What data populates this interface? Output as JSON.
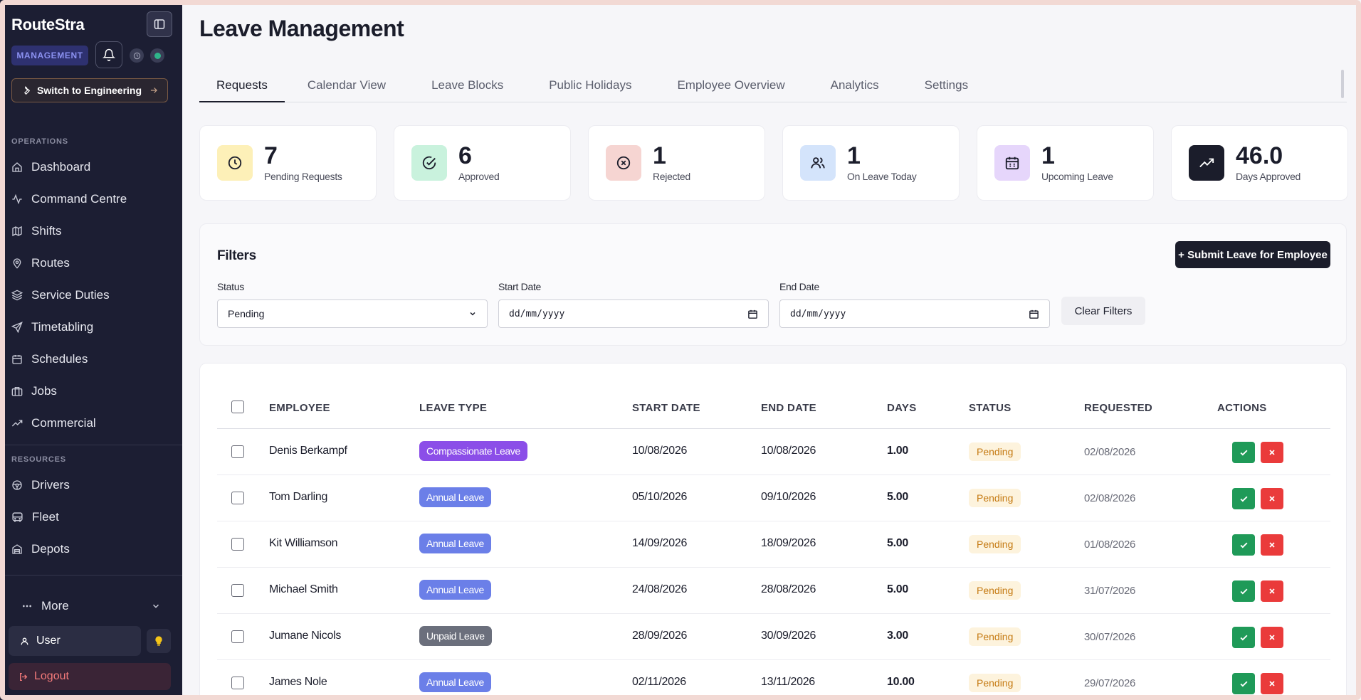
{
  "sidebar": {
    "brand": "RouteStra",
    "mode_badge": "MANAGEMENT",
    "switch_label": "Switch to Engineering",
    "sections": {
      "operations": "OPERATIONS",
      "resources": "RESOURCES"
    },
    "operations_items": [
      {
        "label": "Dashboard",
        "icon": "home-icon"
      },
      {
        "label": "Command Centre",
        "icon": "activity-icon"
      },
      {
        "label": "Shifts",
        "icon": "map-icon"
      },
      {
        "label": "Routes",
        "icon": "pin-icon"
      },
      {
        "label": "Service Duties",
        "icon": "layers-icon"
      },
      {
        "label": "Timetabling",
        "icon": "send-icon"
      },
      {
        "label": "Schedules",
        "icon": "calendar-icon"
      },
      {
        "label": "Jobs",
        "icon": "briefcase-icon"
      },
      {
        "label": "Commercial",
        "icon": "trend-icon"
      }
    ],
    "resources_items": [
      {
        "label": "Drivers",
        "icon": "steering-icon"
      },
      {
        "label": "Fleet",
        "icon": "bus-icon"
      },
      {
        "label": "Depots",
        "icon": "building-icon"
      }
    ],
    "more_label": "More",
    "user_label": "User",
    "logout_label": "Logout"
  },
  "page": {
    "title": "Leave Management",
    "tabs": [
      "Requests",
      "Calendar View",
      "Leave Blocks",
      "Public Holidays",
      "Employee Overview",
      "Analytics",
      "Settings"
    ],
    "active_tab": "Requests"
  },
  "stats": [
    {
      "value": "7",
      "label": "Pending Requests",
      "icon": "clock-icon",
      "bg": "#fdf0b8",
      "fg": "#1b1d2b"
    },
    {
      "value": "6",
      "label": "Approved",
      "icon": "check-circle-icon",
      "bg": "#c9f2dd",
      "fg": "#1b1d2b"
    },
    {
      "value": "1",
      "label": "Rejected",
      "icon": "x-circle-icon",
      "bg": "#f6d5d2",
      "fg": "#1b1d2b"
    },
    {
      "value": "1",
      "label": "On Leave Today",
      "icon": "users-icon",
      "bg": "#d4e4fb",
      "fg": "#1b1d2b"
    },
    {
      "value": "1",
      "label": "Upcoming Leave",
      "icon": "calendar-icon",
      "bg": "#e6d6fb",
      "fg": "#1b1d2b"
    },
    {
      "value": "46.0",
      "label": "Days Approved",
      "icon": "trend-up-icon",
      "bg": "#1b1d2b",
      "fg": "#ffffff"
    }
  ],
  "filters": {
    "title": "Filters",
    "submit_label": "+ Submit Leave for Employee",
    "status_label": "Status",
    "status_value": "Pending",
    "start_label": "Start Date",
    "start_placeholder": "dd/mm/yyyy",
    "end_label": "End Date",
    "end_placeholder": "dd/mm/yyyy",
    "clear_label": "Clear Filters"
  },
  "table": {
    "columns": [
      "EMPLOYEE",
      "LEAVE TYPE",
      "START DATE",
      "END DATE",
      "DAYS",
      "STATUS",
      "REQUESTED",
      "ACTIONS"
    ],
    "rows": [
      {
        "employee": "Denis Berkampf",
        "leave_type": "Compassionate Leave",
        "leave_color": "#8b4ee8",
        "start": "10/08/2026",
        "end": "10/08/2026",
        "days": "1.00",
        "status": "Pending",
        "requested": "02/08/2026"
      },
      {
        "employee": "Tom Darling",
        "leave_type": "Annual Leave",
        "leave_color": "#6b7fe8",
        "start": "05/10/2026",
        "end": "09/10/2026",
        "days": "5.00",
        "status": "Pending",
        "requested": "02/08/2026"
      },
      {
        "employee": "Kit Williamson",
        "leave_type": "Annual Leave",
        "leave_color": "#6b7fe8",
        "start": "14/09/2026",
        "end": "18/09/2026",
        "days": "5.00",
        "status": "Pending",
        "requested": "01/08/2026"
      },
      {
        "employee": "Michael Smith",
        "leave_type": "Annual Leave",
        "leave_color": "#6b7fe8",
        "start": "24/08/2026",
        "end": "28/08/2026",
        "days": "5.00",
        "status": "Pending",
        "requested": "31/07/2026"
      },
      {
        "employee": "Jumane Nicols",
        "leave_type": "Unpaid Leave",
        "leave_color": "#6b6f7c",
        "start": "28/09/2026",
        "end": "30/09/2026",
        "days": "3.00",
        "status": "Pending",
        "requested": "30/07/2026"
      },
      {
        "employee": "James Nole",
        "leave_type": "Annual Leave",
        "leave_color": "#6b7fe8",
        "start": "02/11/2026",
        "end": "13/11/2026",
        "days": "10.00",
        "status": "Pending",
        "requested": "29/07/2026"
      }
    ]
  }
}
